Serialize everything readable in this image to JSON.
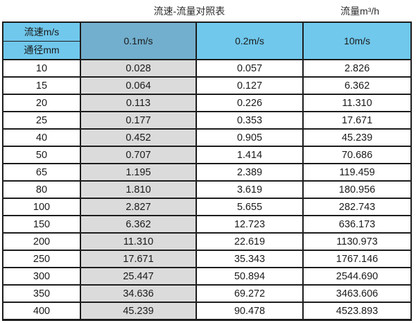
{
  "page": {
    "title_left": "流速-流量对照表",
    "title_right": "流量m³/h"
  },
  "table": {
    "corner_top": "流速m/s",
    "corner_bottom": "通径mm"
  },
  "colors": {
    "header_blue": "#70c8ec",
    "header_blue_dark": "#72afce",
    "column_grey": "#dbdbdb",
    "border": "#1c1c1c"
  },
  "chart_data": {
    "type": "table",
    "title": "流速-流量对照表",
    "units_label": "流量m³/h",
    "row_axis_label": "通径mm",
    "col_axis_label": "流速m/s",
    "columns": [
      "通径mm",
      "0.1m/s",
      "0.2m/s",
      "10m/s"
    ],
    "rows": [
      [
        "10",
        "0.028",
        "0.057",
        "2.826"
      ],
      [
        "15",
        "0.064",
        "0.127",
        "6.362"
      ],
      [
        "20",
        "0.113",
        "0.226",
        "11.310"
      ],
      [
        "25",
        "0.177",
        "0.353",
        "17.671"
      ],
      [
        "40",
        "0.452",
        "0.905",
        "45.239"
      ],
      [
        "50",
        "0.707",
        "1.414",
        "70.686"
      ],
      [
        "65",
        "1.195",
        "2.389",
        "119.459"
      ],
      [
        "80",
        "1.810",
        "3.619",
        "180.956"
      ],
      [
        "100",
        "2.827",
        "5.655",
        "282.743"
      ],
      [
        "150",
        "6.362",
        "12.723",
        "636.173"
      ],
      [
        "200",
        "11.310",
        "22.619",
        "1130.973"
      ],
      [
        "250",
        "17.671",
        "35.343",
        "1767.146"
      ],
      [
        "300",
        "25.447",
        "50.894",
        "2544.690"
      ],
      [
        "350",
        "34.636",
        "69.272",
        "3463.606"
      ],
      [
        "400",
        "45.239",
        "90.478",
        "4523.893"
      ]
    ]
  }
}
